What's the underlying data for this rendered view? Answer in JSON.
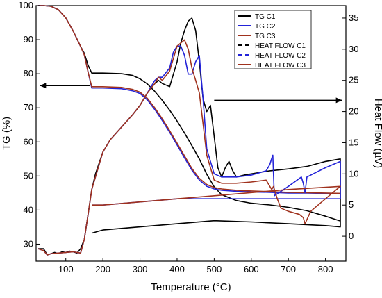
{
  "chart_data": {
    "type": "line",
    "xlabel": "Temperature (°C)",
    "ylabel_left": "TG (%)",
    "ylabel_right": "Heat Flow (µV)",
    "xlim": [
      20,
      855
    ],
    "ylim_left": [
      25,
      100
    ],
    "ylim_right": [
      -4,
      37
    ],
    "x_ticks": [
      100,
      200,
      300,
      400,
      500,
      600,
      700,
      800
    ],
    "y_left_ticks": [
      30,
      40,
      50,
      60,
      70,
      80,
      90,
      100
    ],
    "y_right_ticks": [
      0,
      5,
      10,
      15,
      20,
      25,
      30,
      35
    ],
    "grid": false,
    "legend_position": "top-right",
    "legend": [
      "TG C1",
      "TG C2",
      "TG C3",
      "HEAT FLOW C1",
      "HEAT FLOW C2",
      "HEAT FLOW C3"
    ],
    "colors": {
      "c1": "#000000",
      "c2": "#2323d8",
      "c3": "#a0321e",
      "arrow": "#000000"
    },
    "series": [
      {
        "name": "TG C1",
        "axis": "left",
        "x": [
          25,
          40,
          60,
          80,
          100,
          120,
          140,
          150,
          160,
          170,
          200,
          250,
          280,
          300,
          320,
          340,
          360,
          380,
          400,
          420,
          440,
          460,
          480,
          500,
          520,
          560,
          600,
          650,
          700,
          750,
          800,
          840
        ],
        "y": [
          100,
          100,
          99.8,
          98.8,
          96.4,
          92.5,
          88,
          86,
          82.5,
          80.2,
          80.2,
          80,
          79.5,
          78.5,
          77,
          74.8,
          72.2,
          69.3,
          66.1,
          62.6,
          58.9,
          55,
          50.5,
          46.8,
          44.5,
          42.8,
          42,
          41.5,
          40.8,
          39.8,
          38.2,
          36.8
        ]
      },
      {
        "name": "TG C2",
        "axis": "left",
        "x": [
          25,
          40,
          60,
          80,
          100,
          120,
          140,
          150,
          160,
          170,
          200,
          250,
          280,
          300,
          320,
          340,
          360,
          380,
          400,
          420,
          440,
          460,
          480,
          500,
          520,
          560,
          600,
          650,
          700,
          750,
          800,
          840
        ],
        "y": [
          100,
          100,
          99.8,
          98.8,
          96.4,
          92.5,
          88,
          85.5,
          80.5,
          75.8,
          75.8,
          75.6,
          75,
          74.2,
          72.3,
          69.5,
          66.3,
          62.8,
          59.1,
          55.3,
          51.7,
          48.8,
          47,
          46.2,
          45.8,
          45.5,
          45.3,
          45.2,
          45,
          45,
          44.9,
          44.8
        ]
      },
      {
        "name": "TG C3",
        "axis": "left",
        "x": [
          25,
          40,
          60,
          80,
          100,
          120,
          140,
          150,
          160,
          170,
          200,
          250,
          280,
          300,
          320,
          340,
          360,
          380,
          400,
          420,
          440,
          460,
          480,
          500,
          520,
          560,
          600,
          650,
          700,
          750,
          800,
          840
        ],
        "y": [
          100,
          100,
          99.8,
          98.8,
          96.4,
          92.5,
          88,
          85.5,
          80.5,
          76.2,
          76.2,
          76,
          75.4,
          74.6,
          72.8,
          70,
          66.8,
          63.3,
          59.6,
          55.9,
          52.2,
          49.3,
          47.5,
          46.6,
          46.2,
          45.8,
          45.6,
          45.4,
          45.2,
          45.1,
          45,
          44.9
        ]
      },
      {
        "name": "HEAT FLOW C1",
        "axis": "right",
        "x": [
          25,
          40,
          45,
          50,
          60,
          70,
          80,
          90,
          100,
          110,
          120,
          130,
          140,
          150,
          155,
          160,
          165,
          170,
          180,
          200,
          220,
          250,
          280,
          300,
          320,
          340,
          350,
          360,
          380,
          400,
          410,
          420,
          430,
          440,
          450,
          460,
          470,
          480,
          490,
          500,
          510,
          520,
          530,
          540,
          550,
          560,
          580,
          600,
          620,
          650,
          700,
          750,
          800,
          840,
          840,
          800,
          700,
          600,
          500,
          400,
          300,
          200,
          170
        ],
        "y": [
          -2,
          -2,
          -2.5,
          -3,
          -2.8,
          -2.6,
          -2.8,
          -2.5,
          -2.6,
          -2.4,
          -2.5,
          -2.7,
          -2,
          -0.5,
          1.5,
          3.5,
          5.5,
          7.5,
          10,
          13.5,
          15.5,
          17.5,
          19.5,
          21,
          23,
          24.5,
          25,
          24.5,
          24,
          28,
          31,
          33,
          34.5,
          35,
          33,
          28,
          22,
          20,
          21,
          16,
          11,
          9.5,
          11,
          12,
          10.5,
          9.5,
          9.8,
          10,
          10.2,
          10.5,
          10.8,
          11.2,
          12,
          12.4,
          1.5,
          1.7,
          2,
          2.3,
          2.5,
          2,
          1.5,
          1,
          0.5
        ]
      },
      {
        "name": "HEAT FLOW C2",
        "axis": "right",
        "x": [
          25,
          40,
          50,
          60,
          80,
          100,
          120,
          140,
          150,
          160,
          170,
          200,
          220,
          250,
          280,
          300,
          320,
          340,
          350,
          360,
          380,
          390,
          400,
          410,
          420,
          430,
          440,
          450,
          460,
          470,
          480,
          500,
          520,
          540,
          560,
          600,
          640,
          650,
          655,
          658,
          662,
          700,
          735,
          740,
          745,
          750,
          800,
          840,
          840,
          700,
          600,
          500,
          400,
          300,
          200,
          170
        ],
        "y": [
          -2,
          -2.3,
          -3,
          -2.8,
          -2.7,
          -2.6,
          -2.5,
          -2.7,
          -0.5,
          3.5,
          7.5,
          13.5,
          15.5,
          17.5,
          19.5,
          21,
          23,
          25,
          25.5,
          25.5,
          27,
          29.5,
          30.5,
          30.5,
          29,
          26,
          26,
          28,
          29,
          22,
          14,
          10,
          9.5,
          9.5,
          9.5,
          9.8,
          10.5,
          11.5,
          12.5,
          13,
          6.5,
          8,
          9.5,
          8.5,
          7,
          9.5,
          11,
          12,
          6,
          6,
          6,
          6,
          6,
          5.5,
          5,
          5
        ]
      },
      {
        "name": "HEAT FLOW C3",
        "axis": "right",
        "x": [
          25,
          40,
          50,
          60,
          80,
          100,
          120,
          140,
          150,
          160,
          170,
          200,
          220,
          250,
          280,
          300,
          320,
          340,
          350,
          360,
          380,
          390,
          400,
          410,
          420,
          430,
          440,
          450,
          460,
          470,
          480,
          500,
          520,
          540,
          560,
          600,
          640,
          650,
          655,
          660,
          670,
          680,
          700,
          730,
          740,
          745,
          760,
          800,
          840,
          840,
          700,
          600,
          500,
          400,
          300,
          200,
          170
        ],
        "y": [
          -2,
          -2.3,
          -3,
          -2.8,
          -2.7,
          -2.6,
          -2.5,
          -2.7,
          -0.5,
          3.5,
          7.5,
          13.5,
          15.5,
          17.5,
          19.5,
          21,
          23,
          24.5,
          25.5,
          25,
          26.5,
          28.5,
          30.5,
          31,
          31.5,
          30,
          27,
          25,
          23,
          18,
          13,
          9,
          8.5,
          8.5,
          8.5,
          8.7,
          9,
          8,
          7.5,
          8,
          6,
          4.5,
          4,
          3.5,
          3,
          2,
          4,
          6,
          8,
          8,
          7.5,
          7,
          6.5,
          6,
          5.5,
          5,
          5
        ]
      }
    ],
    "annotations": [
      {
        "type": "arrow",
        "direction": "left",
        "from": [
          165,
          76.5
        ],
        "to": [
          30,
          76.5
        ],
        "axis": "left"
      },
      {
        "type": "arrow",
        "direction": "right",
        "from": [
          500,
          21.8
        ],
        "to": [
          845,
          21.8
        ],
        "axis": "right"
      }
    ]
  }
}
